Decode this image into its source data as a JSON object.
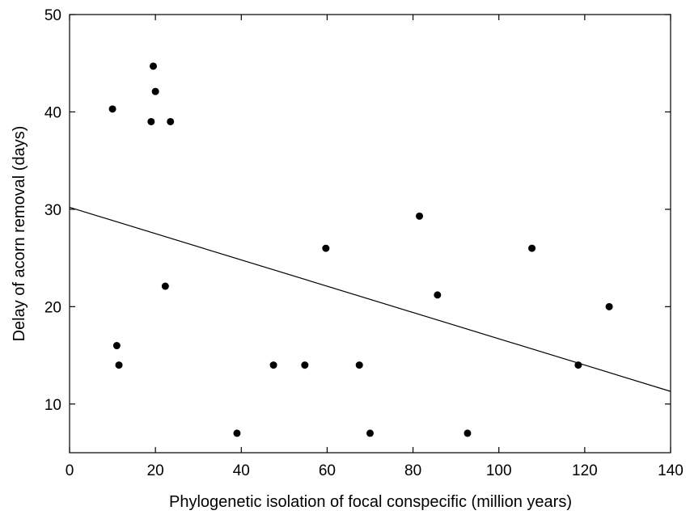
{
  "chart_data": {
    "type": "scatter",
    "title": "",
    "xlabel": "Phylogenetic isolation of focal conspecific (million years)",
    "ylabel": "Delay of acorn removal (days)",
    "xlim": [
      0,
      140
    ],
    "ylim": [
      5,
      50
    ],
    "x_ticks": [
      0,
      20,
      40,
      60,
      80,
      100,
      120,
      140
    ],
    "x_tick_labels": [
      "0",
      "20",
      "40",
      "60",
      "80",
      "100",
      "120",
      "140"
    ],
    "y_ticks": [
      10,
      20,
      30,
      40,
      50
    ],
    "y_tick_labels": [
      "10",
      "20",
      "30",
      "40",
      "50"
    ],
    "grid": false,
    "legend": "none",
    "colors": {
      "points": "#000000",
      "line": "#000000",
      "axes": "#000000"
    },
    "series": [
      {
        "points": [
          {
            "x": 10.0,
            "y": 40.3
          },
          {
            "x": 19.0,
            "y": 39.0
          },
          {
            "x": 19.5,
            "y": 44.7
          },
          {
            "x": 20.0,
            "y": 42.1
          },
          {
            "x": 23.5,
            "y": 39.0
          },
          {
            "x": 11.0,
            "y": 16.0
          },
          {
            "x": 11.5,
            "y": 14.0
          },
          {
            "x": 22.3,
            "y": 22.1
          },
          {
            "x": 39.0,
            "y": 7.0
          },
          {
            "x": 47.5,
            "y": 14.0
          },
          {
            "x": 54.8,
            "y": 14.0
          },
          {
            "x": 59.7,
            "y": 26.0
          },
          {
            "x": 67.5,
            "y": 14.0
          },
          {
            "x": 70.0,
            "y": 7.0
          },
          {
            "x": 81.5,
            "y": 29.3
          },
          {
            "x": 85.7,
            "y": 21.2
          },
          {
            "x": 92.7,
            "y": 7.0
          },
          {
            "x": 107.7,
            "y": 26.0
          },
          {
            "x": 118.5,
            "y": 14.0
          },
          {
            "x": 125.7,
            "y": 20.0
          }
        ]
      }
    ],
    "regression_line": {
      "x": [
        0,
        140
      ],
      "y": [
        30.2,
        11.3
      ]
    }
  }
}
